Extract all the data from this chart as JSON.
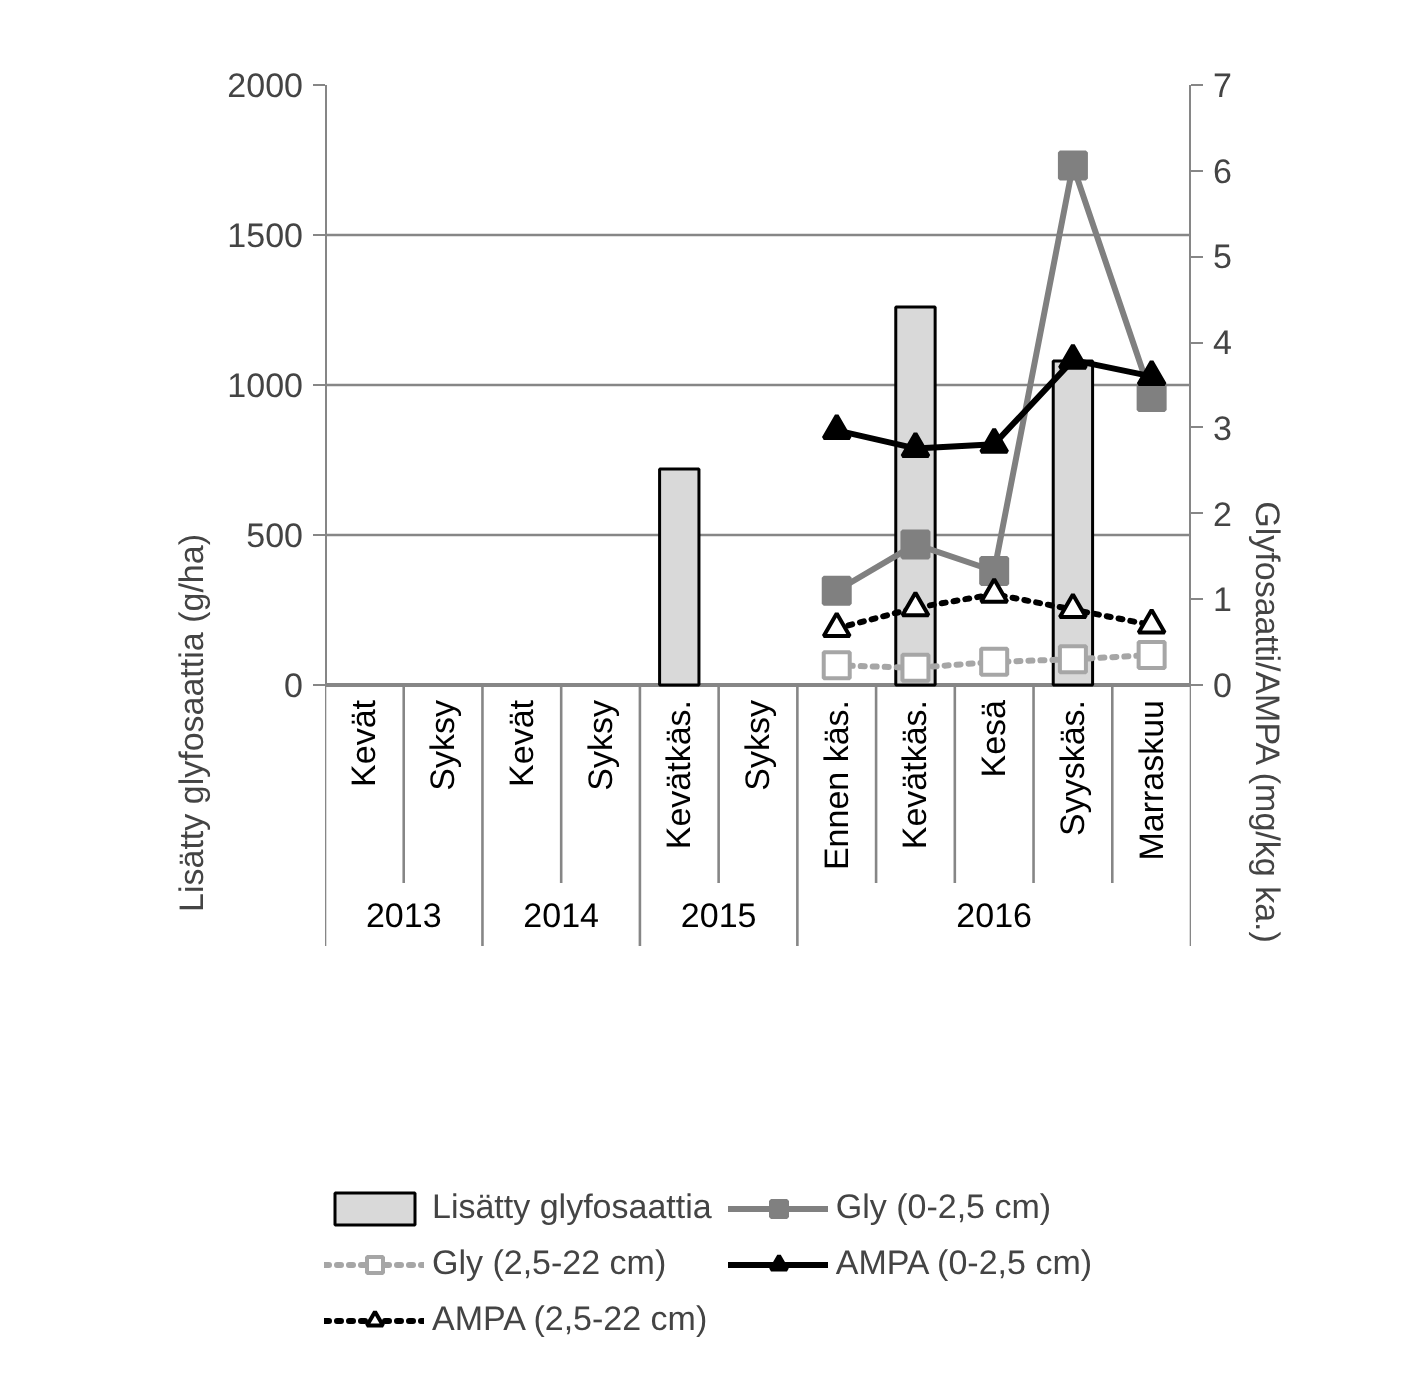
{
  "chart_data": {
    "type": "bar",
    "ylabel": "Lisätty glyfosaattia (g/ha)",
    "y2label": "Glyfosaatti/AMPA (mg/kg ka.)",
    "categories": [
      "Kevät",
      "Syksy",
      "Kevät",
      "Syksy",
      "Kevätkäs.",
      "Syksy",
      "Ennen käs.",
      "Kevätkäs.",
      "Kesä",
      "Syyskäs.",
      "Marraskuu"
    ],
    "series": [
      {
        "name": "Lisätty glyfosaattia",
        "color": "#d9d9d9",
        "values": [
          null,
          null,
          null,
          null,
          720,
          null,
          null,
          1260,
          null,
          1080,
          null
        ]
      },
      {
        "name": "Gly (0-2,5 cm)",
        "type": "line",
        "axis": "y2",
        "color": "#808080",
        "marker": "square",
        "line_style": "solid",
        "values": [
          null,
          null,
          null,
          null,
          null,
          null,
          1.1,
          1.64,
          1.33,
          6.06,
          3.36
        ]
      },
      {
        "name": "Gly (2,5-22 cm)",
        "type": "line",
        "axis": "y2",
        "color": "#a6a6a6",
        "marker": "square",
        "line_style": "dotted",
        "values": [
          null,
          null,
          null,
          null,
          null,
          null,
          0.23,
          0.2,
          0.27,
          0.3,
          0.35
        ]
      },
      {
        "name": "AMPA (0-2,5 cm)",
        "type": "line",
        "axis": "y2",
        "color": "#000000",
        "marker": "triangle",
        "line_style": "solid",
        "values": [
          null,
          null,
          null,
          null,
          null,
          null,
          2.97,
          2.76,
          2.81,
          3.79,
          3.6
        ]
      },
      {
        "name": "AMPA (2,5-22 cm)",
        "type": "line",
        "axis": "y2",
        "color": "#000000",
        "marker": "triangle",
        "line_style": "dotted",
        "values": [
          null,
          null,
          null,
          null,
          null,
          null,
          0.66,
          0.9,
          1.06,
          0.88,
          0.7
        ]
      }
    ],
    "annotations": [
      "2013",
      "2014",
      "2015",
      "2016"
    ],
    "ylim": [
      0,
      2000
    ],
    "yticks": [
      0,
      500,
      1000,
      1500,
      2000
    ],
    "y2lim": [
      0,
      7
    ],
    "y2ticks": [
      0,
      1,
      2,
      3,
      4,
      5,
      6,
      7
    ],
    "grid": "y",
    "legend": "bottom"
  }
}
